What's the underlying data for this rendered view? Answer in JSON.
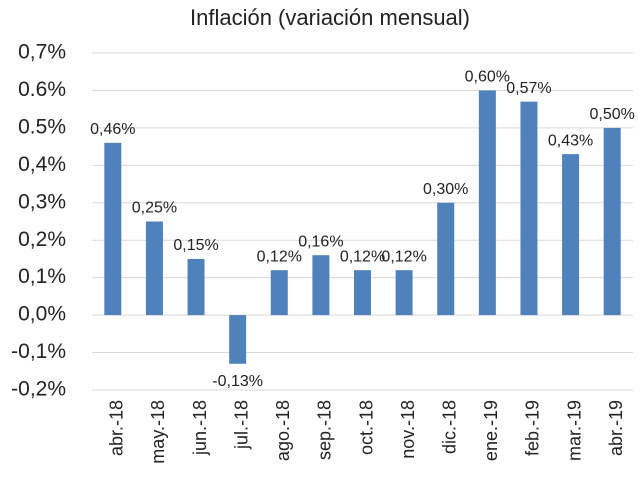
{
  "chart_data": {
    "type": "bar",
    "title": "Inflación (variación mensual)",
    "categories": [
      "abr.-18",
      "may.-18",
      "jun.-18",
      "jul.-18",
      "ago.-18",
      "sep.-18",
      "oct.-18",
      "nov.-18",
      "dic.-18",
      "ene.-19",
      "feb.-19",
      "mar.-19",
      "abr.-19"
    ],
    "values": [
      0.46,
      0.25,
      0.15,
      -0.13,
      0.12,
      0.16,
      0.12,
      0.12,
      0.3,
      0.6,
      0.57,
      0.43,
      0.5
    ],
    "value_labels": [
      "0,46%",
      "0,25%",
      "0,15%",
      "-0,13%",
      "0,12%",
      "0,16%",
      "0,12%",
      "0,12%",
      "0,30%",
      "0,60%",
      "0,57%",
      "0,43%",
      "0,50%"
    ],
    "color": "#4f81bd",
    "ylim": [
      -0.2,
      0.7
    ],
    "yticks": [
      {
        "value": -0.2,
        "label": "-0,2%"
      },
      {
        "value": -0.1,
        "label": "-0,1%"
      },
      {
        "value": 0.0,
        "label": "0,0%"
      },
      {
        "value": 0.1,
        "label": "0,1%"
      },
      {
        "value": 0.2,
        "label": "0,2%"
      },
      {
        "value": 0.3,
        "label": "0,3%"
      },
      {
        "value": 0.4,
        "label": "0,4%"
      },
      {
        "value": 0.5,
        "label": "0.5%"
      },
      {
        "value": 0.6,
        "label": "0.6%"
      },
      {
        "value": 0.7,
        "label": "0,7%"
      }
    ],
    "grid": true
  }
}
